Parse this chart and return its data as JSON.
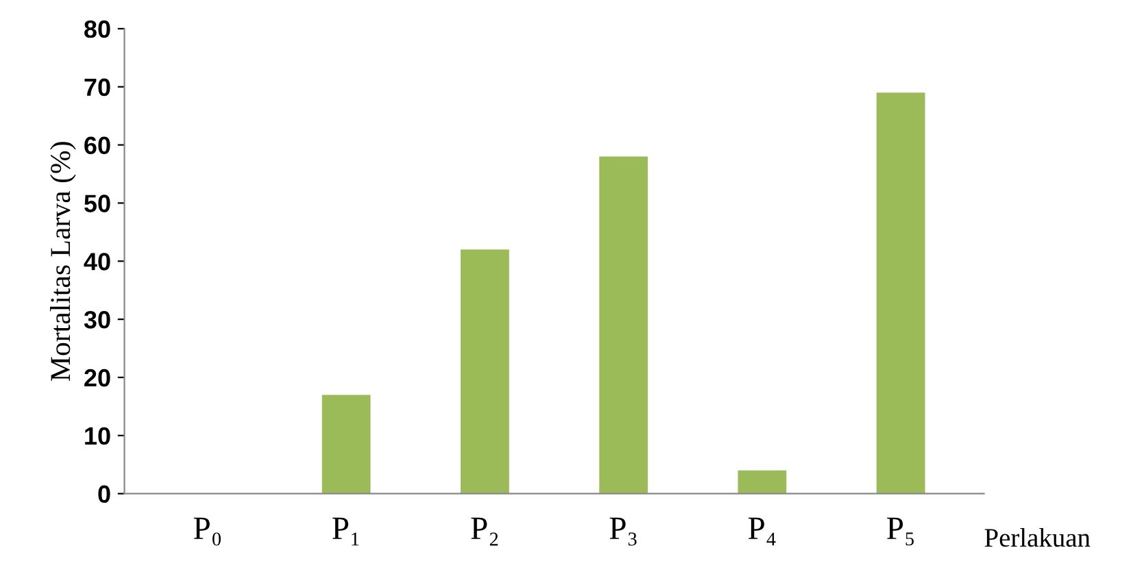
{
  "chart_data": {
    "type": "bar",
    "ylabel": "Mortalitas Larva (%)",
    "xlabel": "Perlakuan",
    "categories": [
      "P₀",
      "P₁",
      "P₂",
      "P₃",
      "P₄",
      "P₅"
    ],
    "values": [
      0,
      17,
      42,
      58,
      4,
      69
    ],
    "color": "#9bbb59",
    "ylim": [
      0,
      80
    ],
    "yticks": [
      0,
      10,
      20,
      30,
      40,
      50,
      60,
      70,
      80
    ],
    "grid": false,
    "legend": false
  }
}
